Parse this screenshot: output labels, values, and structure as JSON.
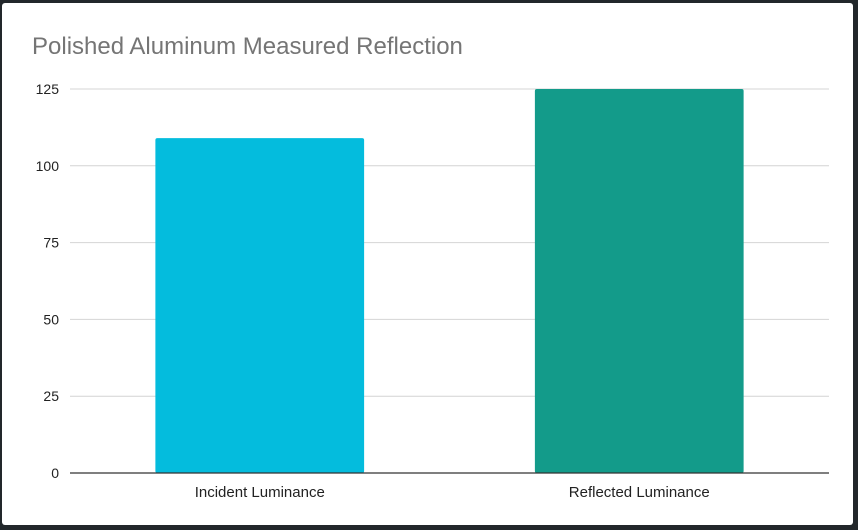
{
  "chart_data": {
    "type": "bar",
    "title": "Polished Aluminum Measured Reflection",
    "xlabel": "",
    "ylabel": "",
    "categories": [
      "Incident Luminance",
      "Reflected Luminance"
    ],
    "values": [
      109,
      125
    ],
    "colors": [
      "#04bcdd",
      "#139b8a"
    ],
    "ylim": [
      0,
      125
    ],
    "yticks": [
      0,
      25,
      50,
      75,
      100,
      125
    ],
    "grid": true,
    "legend": "none"
  }
}
